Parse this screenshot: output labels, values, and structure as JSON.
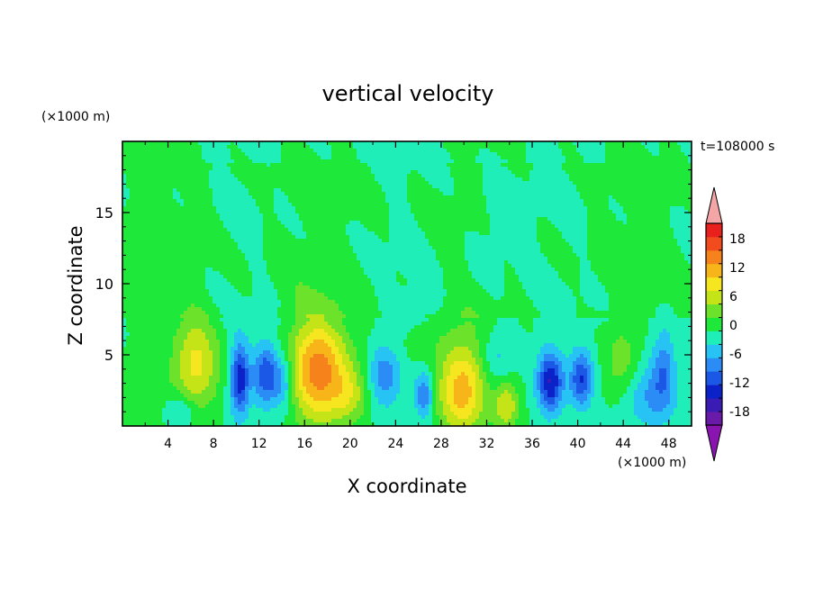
{
  "chart_data": {
    "type": "heatmap",
    "title": "vertical velocity",
    "xlabel": "X coordinate",
    "ylabel": "Z coordinate",
    "x_unit_label": "(×1000 m)",
    "y_unit_label": "(×1000 m)",
    "time_label": "t=108000 s",
    "xlim": [
      0,
      50
    ],
    "ylim": [
      0,
      20
    ],
    "x_ticks": [
      4,
      8,
      12,
      16,
      20,
      24,
      28,
      32,
      36,
      40,
      44,
      48
    ],
    "y_ticks": [
      5,
      10,
      15
    ],
    "x_tick_labels": [
      "4",
      "8",
      "12",
      "16",
      "20",
      "24",
      "28",
      "32",
      "36",
      "40",
      "44",
      "48"
    ],
    "y_tick_labels": [
      "5",
      "10",
      "15"
    ],
    "colorbar": {
      "levels": [
        -21,
        -18,
        -15,
        -12,
        -9,
        -6,
        -3,
        0,
        3,
        6,
        9,
        12,
        15,
        18,
        21
      ],
      "tick_values": [
        18,
        12,
        6,
        0,
        -6,
        -12,
        -18
      ],
      "tick_labels": [
        "18",
        "12",
        "6",
        "0",
        "-6",
        "-12",
        "-18"
      ],
      "colors": [
        "#6a1aa8",
        "#3a1cb4",
        "#0a22c8",
        "#1c58e6",
        "#2c8cf6",
        "#26c3f4",
        "#20eeb8",
        "#1ee83a",
        "#6ce22a",
        "#c4e418",
        "#f6e620",
        "#f8b51a",
        "#f6821c",
        "#f24c1e",
        "#e8201e"
      ],
      "over_color": "#f4a6a6",
      "under_color": "#8a14b0"
    },
    "background_value": 0,
    "features": [
      {
        "x": 2.2,
        "z": 2.0,
        "w": 2.4,
        "sx": 1.6,
        "sz": 2.2
      },
      {
        "x": 6.5,
        "z": 4.4,
        "w": 10.0,
        "sx": 1.4,
        "sz": 2.3
      },
      {
        "x": 17.2,
        "z": 3.9,
        "w": 17.0,
        "sx": 1.8,
        "sz": 2.5
      },
      {
        "x": 20.0,
        "z": 2.2,
        "w": 6.0,
        "sx": 1.2,
        "sz": 1.4
      },
      {
        "x": 29.8,
        "z": 2.5,
        "w": 14.0,
        "sx": 1.5,
        "sz": 2.2
      },
      {
        "x": 33.7,
        "z": 1.5,
        "w": 9.0,
        "sx": 0.8,
        "sz": 1.3
      },
      {
        "x": 43.8,
        "z": 4.6,
        "w": 5.0,
        "sx": 1.0,
        "sz": 1.8
      },
      {
        "x": 26.5,
        "z": 7.0,
        "w": 3.0,
        "sx": 3.0,
        "sz": 1.5
      },
      {
        "x": 10.3,
        "z": 3.3,
        "w": -14.0,
        "sx": 0.6,
        "sz": 1.8
      },
      {
        "x": 12.6,
        "z": 3.6,
        "w": -12.0,
        "sx": 0.8,
        "sz": 1.5
      },
      {
        "x": 14.2,
        "z": 3.0,
        "w": -7.0,
        "sx": 0.7,
        "sz": 1.4
      },
      {
        "x": 23.0,
        "z": 3.6,
        "w": -8.0,
        "sx": 1.0,
        "sz": 1.6
      },
      {
        "x": 26.5,
        "z": 2.2,
        "w": -9.0,
        "sx": 0.6,
        "sz": 1.2
      },
      {
        "x": 37.6,
        "z": 3.1,
        "w": -15.0,
        "sx": 0.8,
        "sz": 1.5
      },
      {
        "x": 40.3,
        "z": 3.3,
        "w": -12.0,
        "sx": 0.7,
        "sz": 1.4
      },
      {
        "x": 47.5,
        "z": 4.2,
        "w": -7.0,
        "sx": 0.7,
        "sz": 1.8
      },
      {
        "x": 46.5,
        "z": 2.0,
        "w": -6.0,
        "sx": 1.6,
        "sz": 1.5
      },
      {
        "x": 5.0,
        "z": 1.0,
        "w": -5.0,
        "sx": 1.0,
        "sz": 0.8
      },
      {
        "x": 33.0,
        "z": 4.5,
        "w": -4.0,
        "sx": 1.0,
        "sz": 1.5
      },
      {
        "x": 26.0,
        "z": 8.0,
        "w": -4.0,
        "sx": 2.0,
        "sz": 1.2
      },
      {
        "x": 33.0,
        "z": 14.0,
        "w": -3.0,
        "sx": 2.0,
        "sz": 2.5
      }
    ],
    "upper_positive_band_top": 15.5,
    "upper_positive_band_bottom": 7.5
  }
}
